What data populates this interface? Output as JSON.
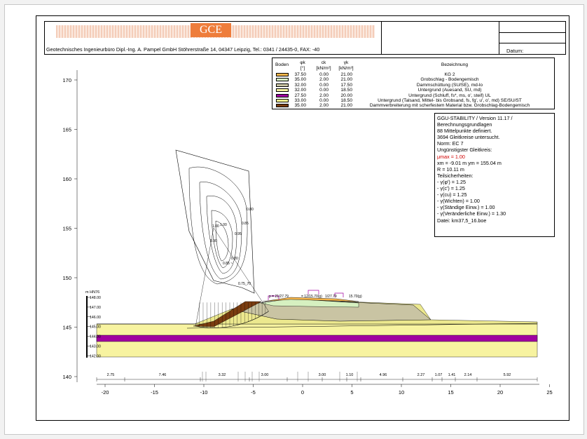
{
  "title_block": {
    "logo": "GCE",
    "company": "Geotechnisches Ingenieurbüro  Dipl.-Ing. A. Pampel GmbH   Stöhrerstraße 14, 04347  Leipzig,    Tel.: 0341 / 24435-0, FAX: -40",
    "datum_label": "Datum:"
  },
  "legend": {
    "headers": {
      "boden": "Boden",
      "phi": "φk\n[°]",
      "c": "ck\n[kN/m²]",
      "gamma": "γk\n[kN/m³]",
      "bez": "Bezeichnung"
    },
    "rows": [
      {
        "color": "#f5b44a",
        "phi": "37.50",
        "c": "0.00",
        "gamma": "21.00",
        "desc": "KG 2"
      },
      {
        "color": "#d6f0c0",
        "phi": "35.00",
        "c": "2.00",
        "gamma": "21.00",
        "desc": "Grobschlag - Bodengemisch"
      },
      {
        "color": "#c9c4a3",
        "phi": "32.00",
        "c": "0.00",
        "gamma": "17.50",
        "desc": "Dammschüttung (SU/SE), md-lo"
      },
      {
        "color": "#f7f3a0",
        "phi": "32.00",
        "c": "0.00",
        "gamma": "18.50",
        "desc": "Untergrund (Auesand, SU, md)"
      },
      {
        "color": "#a000a0",
        "phi": "27.50",
        "c": "2.00",
        "gamma": "20.00",
        "desc": "Untergrund (Schluff, fs*, ms, o', steif) UL"
      },
      {
        "color": "#f9f58c",
        "phi": "33.00",
        "c": "0.00",
        "gamma": "18.50",
        "desc": "Untergrund (Talsand, Mittel- bis Grobsand, fs, fg', u', o', md)  SE/SU/ST"
      },
      {
        "color": "#7a3d10",
        "phi": "35.00",
        "c": "2.00",
        "gamma": "21.00",
        "desc": "Dammverbreiterung mit scherfestem Material bzw. Grobschlag-Bodengemisch"
      }
    ]
  },
  "info": {
    "lines": [
      "GGU-STABILITY / Version 11.17 /",
      "Berechnungsgrundlagen",
      "88 Mittelpunkte definiert.",
      "3694 Gleitkreise untersucht.",
      "Norm:  EC 7",
      "Ungünstigster Gleitkreis:"
    ],
    "mu": "μmax = 1.00",
    "center": "xm = -9.01 m   ym = 155.04 m",
    "radius": "R = 10.11 m",
    "partial_title": "Teilsicherheiten:",
    "partials": [
      "- γ(φ') = 1.25",
      "- γ(c') = 1.25",
      "- γ(cu) = 1.25",
      "- γ(Wichten) = 1.00",
      "- γ(Ständige Einw.) = 1.00",
      "- γ(Veränderliche Einw.) = 1.30"
    ],
    "file": "Datei: km37,5_16.boe"
  },
  "y_axis": {
    "ticks": [
      "170",
      "165",
      "160",
      "155",
      "150",
      "145",
      "140"
    ],
    "values": [
      170,
      165,
      160,
      155,
      150,
      145,
      140
    ]
  },
  "x_axis": {
    "ticks": [
      "-20",
      "-15",
      "-10",
      "-5",
      "0",
      "5",
      "10",
      "15",
      "20",
      "25"
    ],
    "values": [
      -20,
      -15,
      -10,
      -5,
      0,
      5,
      10,
      15,
      20,
      25
    ]
  },
  "borehole": {
    "label": "m HN76",
    "ticks": [
      "148.00",
      "147.00",
      "146.00",
      "145.00",
      "144.00",
      "143.00",
      "142.00"
    ]
  },
  "dimensions": [
    "2.75",
    "7.46",
    "3.32",
    "3.00",
    "3.00",
    "1.10",
    "4.96",
    "2.27",
    "1.07",
    "1.41",
    "2.14",
    "5.92"
  ],
  "loads": [
    "p = 21/27.79",
    "= 12/15.70(g)",
    "1/27.79",
    "15.70(g)"
  ],
  "contour_labels": [
    "0.80",
    "0.85",
    "1.00",
    "0.95",
    "0.90",
    "0.75_70",
    "0.85 ~",
    "0.80"
  ]
}
